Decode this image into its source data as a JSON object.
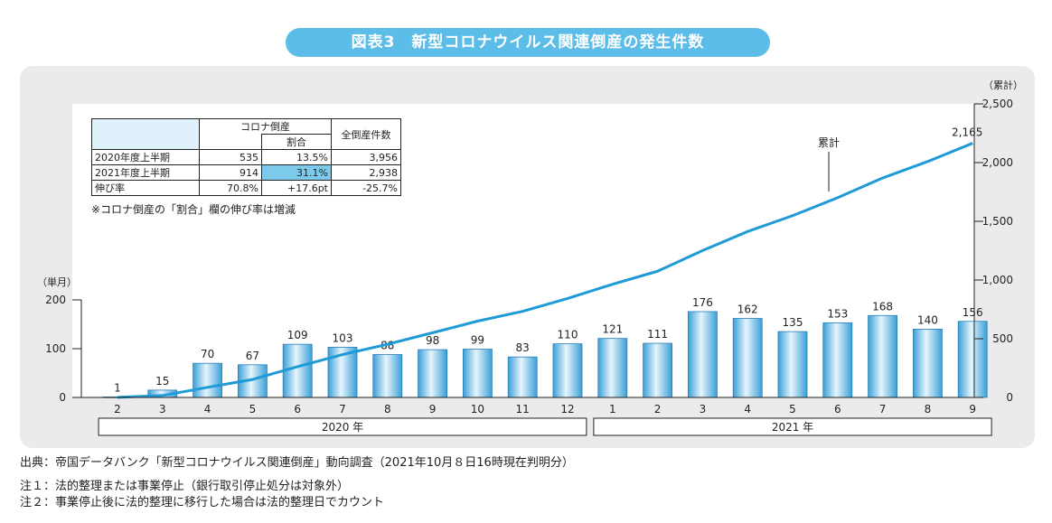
{
  "title": "図表3　新型コロナウイルス関連倒産の発生件数",
  "chart_data": {
    "type": "bar+line",
    "categories": [
      "2",
      "3",
      "4",
      "5",
      "6",
      "7",
      "8",
      "9",
      "10",
      "11",
      "12",
      "1",
      "2",
      "3",
      "4",
      "5",
      "6",
      "7",
      "8",
      "9"
    ],
    "year_groups": [
      {
        "label": "2020 年",
        "from": 0,
        "to": 10
      },
      {
        "label": "2021 年",
        "from": 11,
        "to": 19
      }
    ],
    "bars": {
      "values": [
        1,
        15,
        70,
        67,
        109,
        103,
        88,
        98,
        99,
        83,
        110,
        121,
        111,
        176,
        162,
        135,
        153,
        168,
        140,
        156
      ],
      "ylim": [
        0,
        200
      ],
      "ticks": [
        "0",
        "100",
        "200"
      ],
      "axis_label": "（単月）"
    },
    "line": {
      "values": [
        1,
        16,
        86,
        153,
        262,
        365,
        453,
        551,
        650,
        733,
        843,
        964,
        1075,
        1251,
        1413,
        1548,
        1701,
        1869,
        2009,
        2165
      ],
      "ylim": [
        0,
        2500
      ],
      "ticks": [
        "0",
        "500",
        "1,000",
        "1,500",
        "2,000",
        "2,500"
      ],
      "axis_label": "（累計）",
      "annotation": "累計",
      "end_label": "2,165"
    },
    "colors": {
      "bar_dark": "#3a9fd8",
      "bar_light": "#e6f5fc",
      "line": "#1e9bd7"
    }
  },
  "table": {
    "head_corona": "コロナ倒産",
    "head_ratio": "割合",
    "head_total": "全倒産件数",
    "rows": [
      {
        "label": "2020年度上半期",
        "corona": "535",
        "ratio": "13.5%",
        "total": "3,956"
      },
      {
        "label": "2021年度上半期",
        "corona": "914",
        "ratio": "31.1%",
        "total": "2,938"
      },
      {
        "label": "伸び率",
        "corona": "70.8%",
        "ratio": "+17.6pt",
        "total": "-25.7%"
      }
    ],
    "note": "※コロナ倒産の「割合」欄の伸び率は増減"
  },
  "footnotes": {
    "source": "出典：帝国データバンク「新型コロナウイルス関連倒産」動向調査（2021年10月８日16時現在判明分）",
    "note1": "注１：法的整理または事業停止（銀行取引停止処分は対象外）",
    "note2": "注２：事業停止後に法的整理に移行した場合は法的整理日でカウント"
  }
}
